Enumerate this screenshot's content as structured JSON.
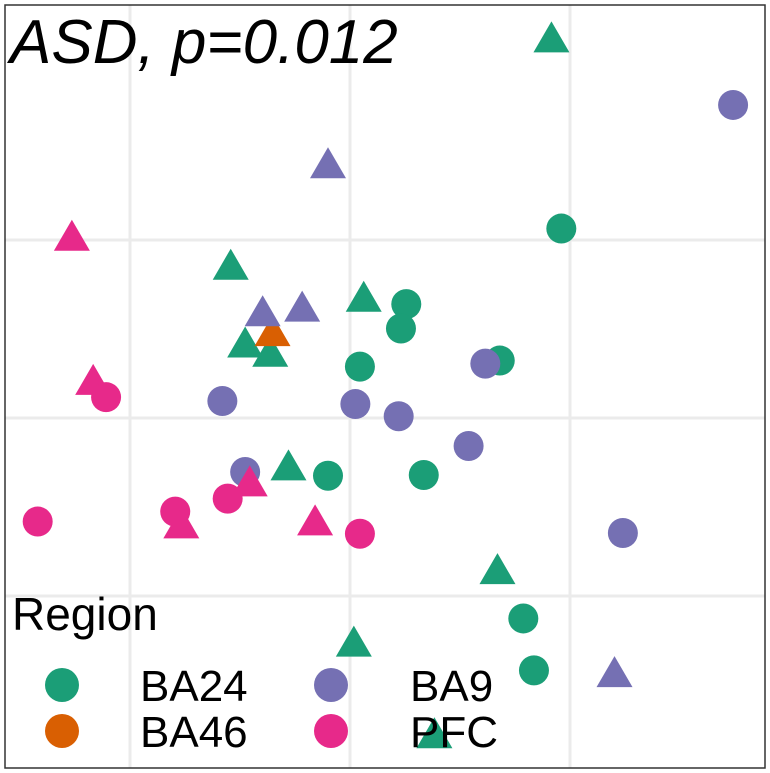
{
  "chart_data": {
    "type": "scatter",
    "title": "ASD, p=0.012",
    "xlabel": "",
    "ylabel": "",
    "xlim": [
      0,
      100
    ],
    "ylim": [
      0,
      100
    ],
    "grid": true,
    "legend": {
      "title": "Region",
      "placement": "bottom-left",
      "entries": [
        {
          "label": "BA24",
          "color": "#1b9e77"
        },
        {
          "label": "BA46",
          "color": "#d95f02"
        },
        {
          "label": "BA9",
          "color": "#7570b3"
        },
        {
          "label": "PFC",
          "color": "#e7298a"
        }
      ]
    },
    "series": [
      {
        "name": "BA24",
        "color": "#1b9e77",
        "points": [
          {
            "x": 71.9,
            "y": 95.5,
            "shape": "triangle"
          },
          {
            "x": 73.2,
            "y": 70.7,
            "shape": "circle"
          },
          {
            "x": 29.7,
            "y": 65.7,
            "shape": "triangle"
          },
          {
            "x": 47.2,
            "y": 61.5,
            "shape": "triangle"
          },
          {
            "x": 52.8,
            "y": 60.8,
            "shape": "circle"
          },
          {
            "x": 52.1,
            "y": 57.6,
            "shape": "circle"
          },
          {
            "x": 31.6,
            "y": 55.5,
            "shape": "triangle"
          },
          {
            "x": 34.9,
            "y": 54.3,
            "shape": "triangle"
          },
          {
            "x": 65.1,
            "y": 53.4,
            "shape": "circle"
          },
          {
            "x": 46.7,
            "y": 52.6,
            "shape": "circle"
          },
          {
            "x": 37.3,
            "y": 39.4,
            "shape": "triangle"
          },
          {
            "x": 42.5,
            "y": 38.3,
            "shape": "circle"
          },
          {
            "x": 55.1,
            "y": 38.4,
            "shape": "circle"
          },
          {
            "x": 64.8,
            "y": 25.8,
            "shape": "triangle"
          },
          {
            "x": 68.2,
            "y": 19.6,
            "shape": "circle"
          },
          {
            "x": 45.9,
            "y": 16.3,
            "shape": "triangle"
          },
          {
            "x": 69.6,
            "y": 12.8,
            "shape": "circle"
          },
          {
            "x": 56.5,
            "y": 4.3,
            "shape": "triangle"
          }
        ]
      },
      {
        "name": "BA46",
        "color": "#d95f02",
        "points": [
          {
            "x": 35.2,
            "y": 57.0,
            "shape": "triangle"
          }
        ]
      },
      {
        "name": "BA9",
        "color": "#7570b3",
        "points": [
          {
            "x": 95.8,
            "y": 86.9,
            "shape": "circle"
          },
          {
            "x": 42.5,
            "y": 79.0,
            "shape": "triangle"
          },
          {
            "x": 33.9,
            "y": 59.6,
            "shape": "triangle"
          },
          {
            "x": 39.1,
            "y": 60.2,
            "shape": "triangle"
          },
          {
            "x": 63.2,
            "y": 53.0,
            "shape": "circle"
          },
          {
            "x": 28.6,
            "y": 48.1,
            "shape": "circle"
          },
          {
            "x": 46.1,
            "y": 47.7,
            "shape": "circle"
          },
          {
            "x": 51.8,
            "y": 46.1,
            "shape": "circle"
          },
          {
            "x": 61.0,
            "y": 42.2,
            "shape": "circle"
          },
          {
            "x": 31.6,
            "y": 38.8,
            "shape": "circle"
          },
          {
            "x": 81.3,
            "y": 30.8,
            "shape": "circle"
          },
          {
            "x": 80.2,
            "y": 12.3,
            "shape": "triangle"
          }
        ]
      },
      {
        "name": "PFC",
        "color": "#e7298a",
        "points": [
          {
            "x": 8.8,
            "y": 69.5,
            "shape": "triangle"
          },
          {
            "x": 11.6,
            "y": 50.6,
            "shape": "triangle"
          },
          {
            "x": 13.3,
            "y": 48.6,
            "shape": "circle"
          },
          {
            "x": 32.2,
            "y": 37.3,
            "shape": "triangle"
          },
          {
            "x": 29.3,
            "y": 35.3,
            "shape": "circle"
          },
          {
            "x": 22.4,
            "y": 33.6,
            "shape": "circle"
          },
          {
            "x": 4.3,
            "y": 32.3,
            "shape": "circle"
          },
          {
            "x": 23.2,
            "y": 31.8,
            "shape": "triangle"
          },
          {
            "x": 40.8,
            "y": 32.2,
            "shape": "triangle"
          },
          {
            "x": 46.7,
            "y": 30.7,
            "shape": "circle"
          }
        ]
      }
    ]
  }
}
